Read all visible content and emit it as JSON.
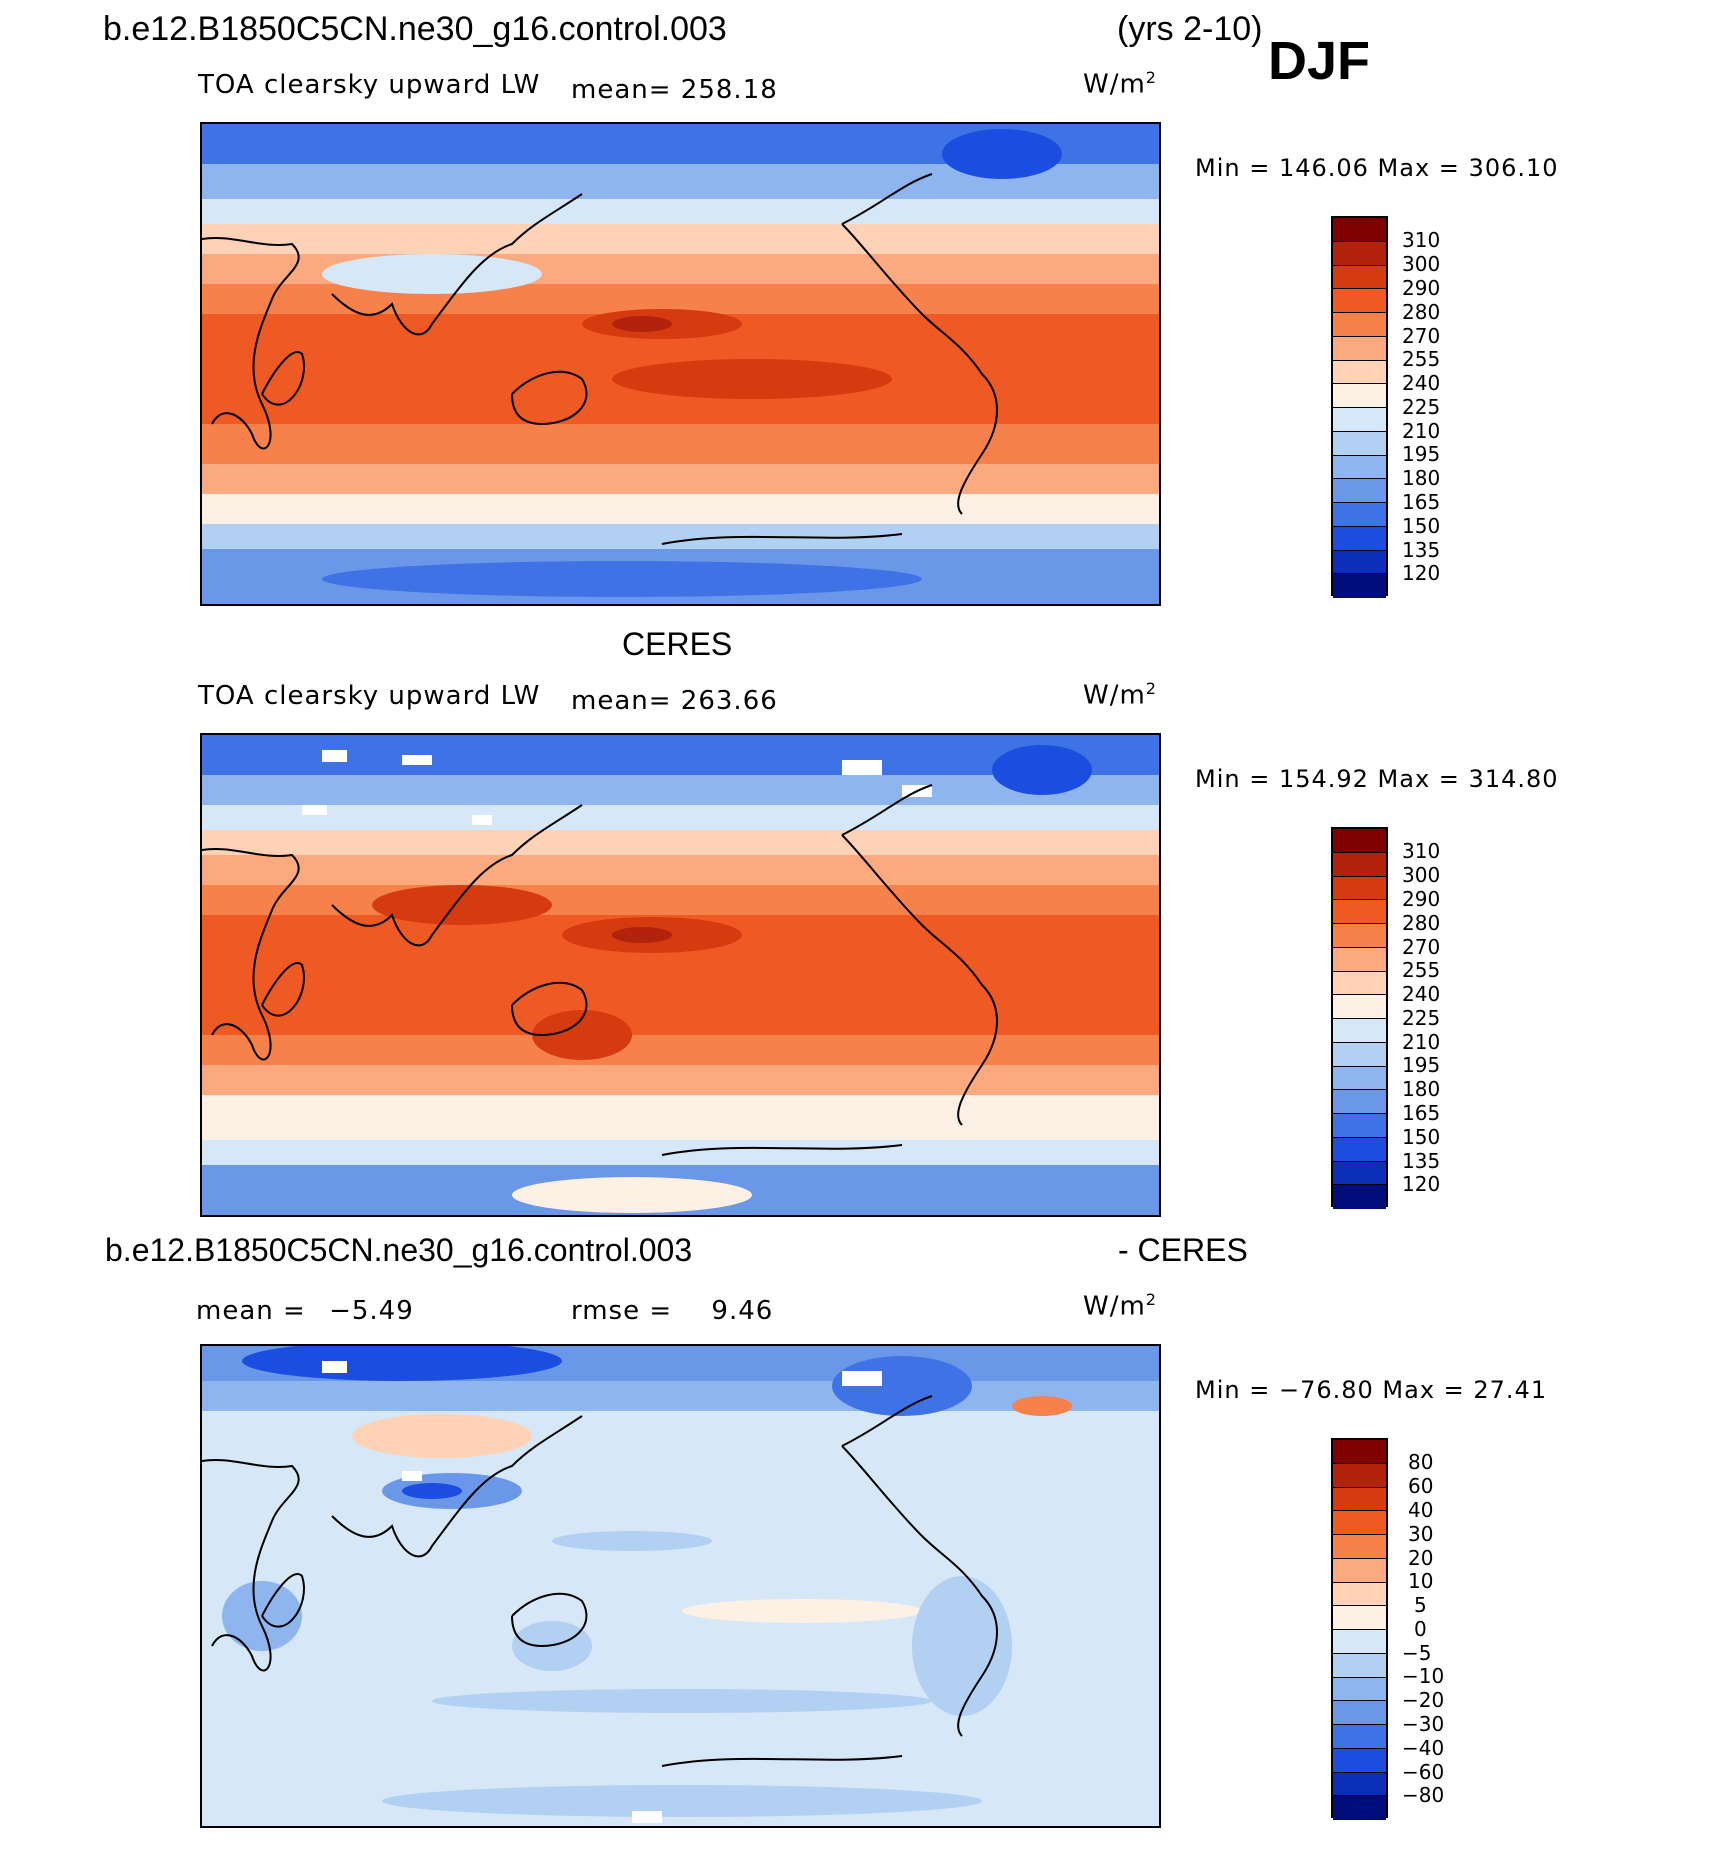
{
  "header": {
    "case_name": "b.e12.B1850C5CN.ne30_g16.control.003",
    "years": "(yrs 2-10)",
    "season": "DJF"
  },
  "panels": [
    {
      "id": "model",
      "variable": "TOA clearsky upward LW",
      "mean_label": "mean=",
      "mean_value": "258.18",
      "units": "W/m",
      "units_exp": "2",
      "minmax": "Min  =  146.06  Max  =  306.10",
      "colorbar_ticks": [
        "310",
        "300",
        "290",
        "280",
        "270",
        "255",
        "240",
        "225",
        "210",
        "195",
        "180",
        "165",
        "150",
        "135",
        "120"
      ]
    },
    {
      "id": "obs",
      "title": "CERES",
      "variable": "TOA clearsky upward LW",
      "mean_label": "mean=",
      "mean_value": "263.66",
      "units": "W/m",
      "units_exp": "2",
      "minmax": "Min  =  154.92  Max  =  314.80",
      "colorbar_ticks": [
        "310",
        "300",
        "290",
        "280",
        "270",
        "255",
        "240",
        "225",
        "210",
        "195",
        "180",
        "165",
        "150",
        "135",
        "120"
      ]
    },
    {
      "id": "diff",
      "title_left": "b.e12.B1850C5CN.ne30_g16.control.003",
      "title_right": "- CERES",
      "mean_label": "mean  =",
      "mean_value": "−5.49",
      "rmse_label": "rmse  =",
      "rmse_value": "9.46",
      "units": "W/m",
      "units_exp": "2",
      "minmax": "Min  =  −76.80  Max  =    27.41",
      "colorbar_ticks": [
        "80",
        "60",
        "40",
        "30",
        "20",
        "10",
        "5",
        "0",
        "−5",
        "−10",
        "−20",
        "−30",
        "−40",
        "−60",
        "−80"
      ]
    }
  ],
  "colors": {
    "abs_scale": [
      "#7f0000",
      "#b2220c",
      "#d63a0f",
      "#ef5a24",
      "#f7814a",
      "#fba97e",
      "#fdd2b6",
      "#fdf0e4",
      "#d6e7f8",
      "#b2d0f2",
      "#8fb5ee",
      "#6a97e8",
      "#3f72e4",
      "#1b4ee0",
      "#0c2fb9",
      "#000d7a"
    ],
    "diff_scale": [
      "#7f0000",
      "#b2220c",
      "#d63a0f",
      "#ef5a24",
      "#f7814a",
      "#fba97e",
      "#fdd2b6",
      "#fdf0e4",
      "#d6e7f8",
      "#b2d0f2",
      "#8fb5ee",
      "#6a97e8",
      "#3f72e4",
      "#1b4ee0",
      "#0c2fb9",
      "#000d7a"
    ]
  }
}
